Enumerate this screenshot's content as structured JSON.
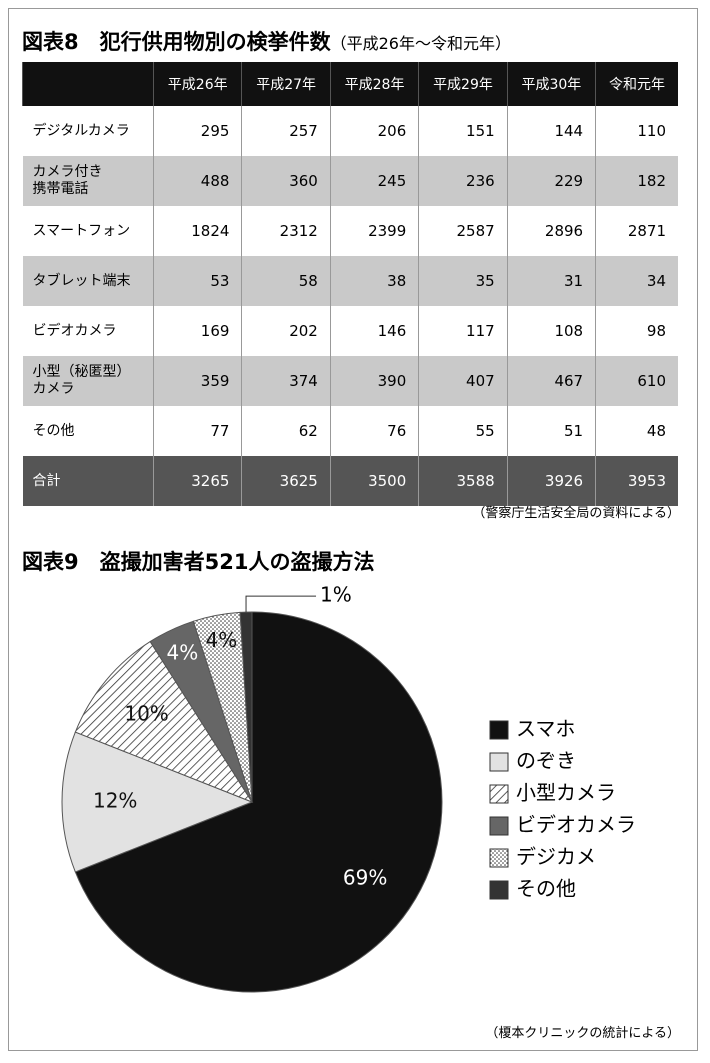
{
  "table": {
    "title": "図表8　犯行供用物別の検挙件数",
    "subtitle": "（平成26年～令和元年）",
    "columns": [
      "平成26年",
      "平成27年",
      "平成28年",
      "平成29年",
      "平成30年",
      "令和元年"
    ],
    "rows": [
      [
        "デジタルカメラ",
        295,
        257,
        206,
        151,
        144,
        110
      ],
      [
        "カメラ付き\n携帯電話",
        488,
        360,
        245,
        236,
        229,
        182
      ],
      [
        "スマートフォン",
        1824,
        2312,
        2399,
        2587,
        2896,
        2871
      ],
      [
        "タブレット端末",
        53,
        58,
        38,
        35,
        31,
        34
      ],
      [
        "ビデオカメラ",
        169,
        202,
        146,
        117,
        108,
        98
      ],
      [
        "小型（秘匿型）\nカメラ",
        359,
        374,
        390,
        407,
        467,
        610
      ],
      [
        "その他",
        77,
        62,
        76,
        55,
        51,
        48
      ]
    ],
    "total": [
      "合計",
      3265,
      3625,
      3500,
      3588,
      3926,
      3953
    ],
    "source": "（警察庁生活安全局の資料による）"
  },
  "chart_data": {
    "type": "pie",
    "title": "図表9　盗撮加害者521人の盗撮方法",
    "categories": [
      "スマホ",
      "のぞき",
      "小型カメラ",
      "ビデオカメラ",
      "デジカメ",
      "その他"
    ],
    "values": [
      69,
      12,
      10,
      4,
      4,
      1
    ],
    "value_labels": [
      "69%",
      "12%",
      "10%",
      "4%",
      "4%",
      "1%"
    ],
    "colors": [
      "#111111",
      "#e2e2e2",
      "#ffffff",
      "#666666",
      "#ffffff",
      "#333333"
    ],
    "patterns": [
      "solid",
      "solid",
      "hatch",
      "solid",
      "dots",
      "solid"
    ],
    "legend": "right",
    "source": "（榎本クリニックの統計による）"
  }
}
